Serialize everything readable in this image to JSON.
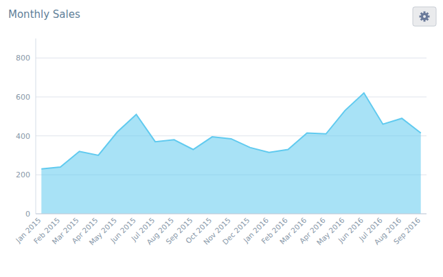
{
  "chart_data": {
    "type": "area",
    "title": "Monthly Sales",
    "categories": [
      "Jan 2015",
      "Feb 2015",
      "Mar 2015",
      "Apr 2015",
      "May 2015",
      "Jun 2015",
      "Jul 2015",
      "Aug 2015",
      "Sep 2015",
      "Oct 2015",
      "Nov 2015",
      "Dec 2015",
      "Jan 2016",
      "Feb 2016",
      "Mar 2016",
      "Apr 2016",
      "May 2016",
      "Jun 2016",
      "Jul 2016",
      "Aug 2016",
      "Sep 2016"
    ],
    "values": [
      230,
      240,
      320,
      300,
      420,
      510,
      370,
      380,
      330,
      395,
      385,
      340,
      315,
      330,
      415,
      410,
      530,
      620,
      460,
      490,
      415
    ],
    "color": "#60caef",
    "ylim": [
      0,
      900
    ],
    "yticks": [
      0,
      200,
      400,
      600,
      800
    ],
    "grid": true
  }
}
